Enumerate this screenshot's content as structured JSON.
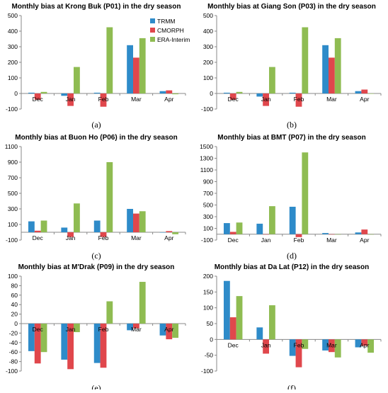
{
  "colors": {
    "TRMM": "#2e8bc9",
    "CMORPH": "#e0474c",
    "ERA-Interim": "#8fbc52"
  },
  "chart_data": [
    {
      "type": "bar",
      "title": "Monthly bias at Krong Buk (P01) in the dry season",
      "caption": "(a)",
      "categories": [
        "Dec",
        "Jan",
        "Feb",
        "Mar",
        "Apr"
      ],
      "ylim": [
        -100,
        500
      ],
      "yticks": [
        -100,
        0,
        100,
        200,
        300,
        400,
        500
      ],
      "legend": "top-right",
      "series": [
        {
          "name": "TRMM",
          "values": [
            5,
            -15,
            5,
            310,
            15
          ]
        },
        {
          "name": "CMORPH",
          "values": [
            -40,
            -80,
            -85,
            230,
            20
          ]
        },
        {
          "name": "ERA-Interim",
          "values": [
            10,
            170,
            425,
            355,
            -5
          ]
        }
      ]
    },
    {
      "type": "bar",
      "title": "Monthly bias at Giang Son (P03) in the dry season",
      "caption": "(b)",
      "categories": [
        "Dec",
        "Jan",
        "Feb",
        "Mar",
        "Apr"
      ],
      "ylim": [
        -100,
        500
      ],
      "yticks": [
        -100,
        0,
        100,
        200,
        300,
        400,
        500
      ],
      "series": [
        {
          "name": "TRMM",
          "values": [
            5,
            -20,
            5,
            310,
            15
          ]
        },
        {
          "name": "CMORPH",
          "values": [
            -40,
            -80,
            -85,
            230,
            25
          ]
        },
        {
          "name": "ERA-Interim",
          "values": [
            10,
            170,
            425,
            355,
            0
          ]
        }
      ]
    },
    {
      "type": "bar",
      "title": "Monthly bias at Buon Ho (P06) in the dry season",
      "caption": "(c)",
      "categories": [
        "Dec",
        "Jan",
        "Feb",
        "Mar",
        "Apr"
      ],
      "ylim": [
        -100,
        1100
      ],
      "yticks": [
        -100,
        100,
        300,
        500,
        700,
        900,
        1100
      ],
      "series": [
        {
          "name": "TRMM",
          "values": [
            140,
            60,
            150,
            300,
            0
          ]
        },
        {
          "name": "CMORPH",
          "values": [
            20,
            -60,
            -60,
            240,
            15
          ]
        },
        {
          "name": "ERA-Interim",
          "values": [
            150,
            370,
            900,
            270,
            -25
          ]
        }
      ]
    },
    {
      "type": "bar",
      "title": "Monthly bias at BMT (P07) in the dry season",
      "caption": "(d)",
      "categories": [
        "Dec",
        "Jan",
        "Feb",
        "Mar",
        "Apr"
      ],
      "ylim": [
        -100,
        1500
      ],
      "yticks": [
        -100,
        100,
        300,
        500,
        700,
        900,
        1100,
        1300,
        1500
      ],
      "series": [
        {
          "name": "TRMM",
          "values": [
            190,
            180,
            470,
            20,
            30
          ]
        },
        {
          "name": "CMORPH",
          "values": [
            40,
            0,
            -50,
            0,
            80
          ]
        },
        {
          "name": "ERA-Interim",
          "values": [
            200,
            480,
            1400,
            0,
            0
          ]
        }
      ]
    },
    {
      "type": "bar",
      "title": "Monthly bias at M'Drak (P09) in the dry season",
      "caption": "(e)",
      "categories": [
        "Dec",
        "Jan",
        "Feb",
        "Mar",
        "Apr"
      ],
      "ylim": [
        -100,
        100
      ],
      "yticks": [
        -100,
        -80,
        -60,
        -40,
        -20,
        0,
        20,
        40,
        60,
        80,
        100
      ],
      "series": [
        {
          "name": "TRMM",
          "values": [
            -58,
            -76,
            -83,
            -14,
            -25
          ]
        },
        {
          "name": "CMORPH",
          "values": [
            -84,
            -96,
            -93,
            -10,
            -33
          ]
        },
        {
          "name": "ERA-Interim",
          "values": [
            -60,
            -18,
            47,
            88,
            -30
          ]
        }
      ]
    },
    {
      "type": "bar",
      "title": "Monthly bias at Da Lat (P12) in the dry season",
      "caption": "(f)",
      "categories": [
        "Dec",
        "Jan",
        "Feb",
        "Mar",
        "Apr"
      ],
      "ylim": [
        -100,
        200
      ],
      "yticks": [
        -100,
        -50,
        0,
        50,
        100,
        150,
        200
      ],
      "series": [
        {
          "name": "TRMM",
          "values": [
            185,
            38,
            -52,
            -35,
            -25
          ]
        },
        {
          "name": "CMORPH",
          "values": [
            70,
            -45,
            -88,
            -40,
            -20
          ]
        },
        {
          "name": "ERA-Interim",
          "values": [
            137,
            108,
            -30,
            -57,
            -42
          ]
        }
      ]
    }
  ]
}
